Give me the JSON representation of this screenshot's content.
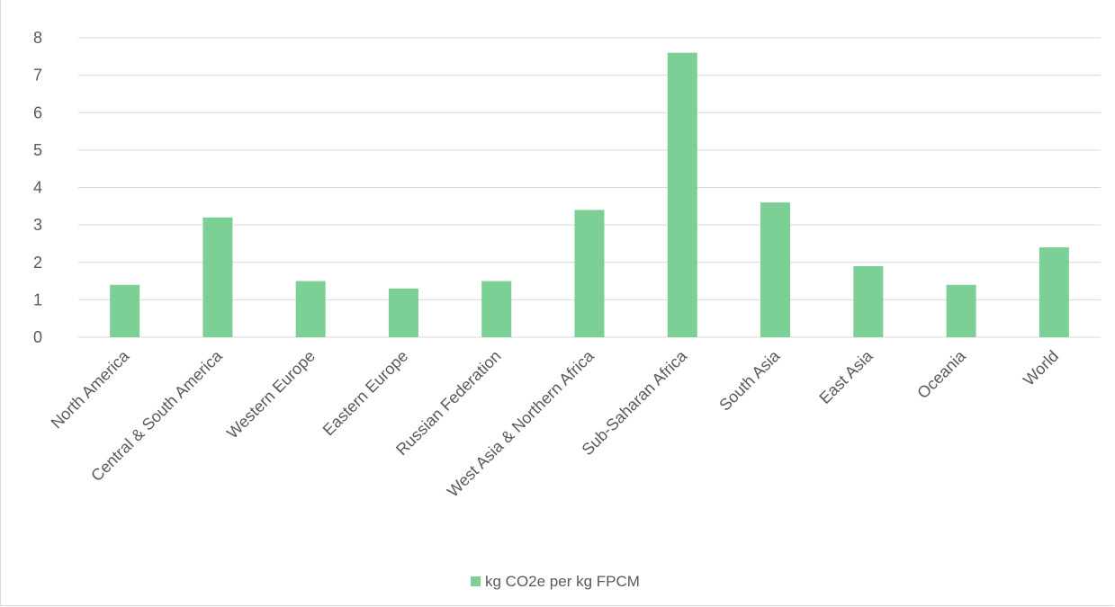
{
  "chart_data": {
    "type": "bar",
    "categories": [
      "North America",
      "Central & South America",
      "Western Europe",
      "Eastern Europe",
      "Russian Federation",
      "West Asia & Northern Africa",
      "Sub-Saharan Africa",
      "South Asia",
      "East Asia",
      "Oceania",
      "World"
    ],
    "series": [
      {
        "name": "kg CO2e per kg FPCM",
        "values": [
          1.4,
          3.2,
          1.5,
          1.3,
          1.5,
          3.4,
          7.6,
          3.6,
          1.9,
          1.4,
          2.4
        ],
        "color": "#7dd095"
      }
    ],
    "ylim": [
      0,
      8
    ],
    "yticks": [
      "0",
      "1",
      "2",
      "3",
      "4",
      "5",
      "6",
      "7",
      "8"
    ],
    "grid": true,
    "legend_position": "bottom",
    "gridline_color": "#d9d9d9",
    "text_color": "#595959"
  }
}
